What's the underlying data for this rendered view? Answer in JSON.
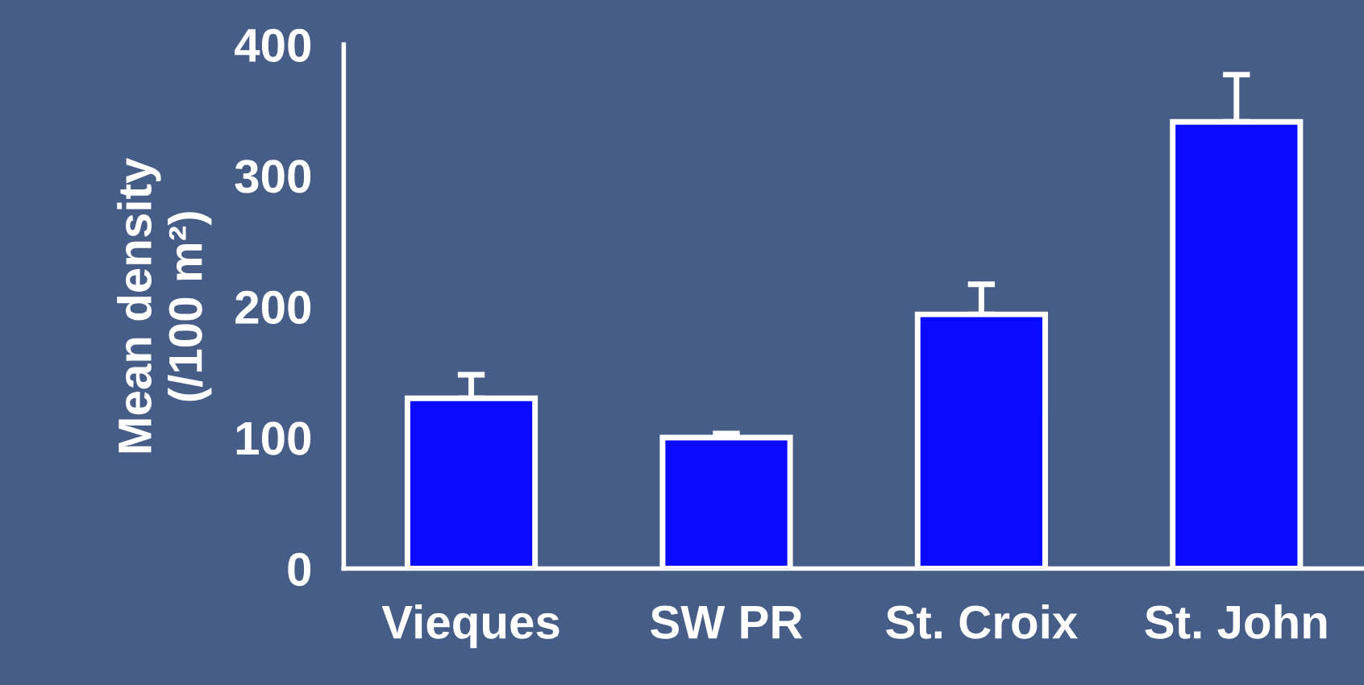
{
  "chart_data": {
    "type": "bar",
    "ylabel": "Mean density\n(/100 m²)",
    "categories": [
      "Vieques",
      "SW PR",
      "St. Croix",
      "St. John"
    ],
    "values": [
      130,
      100,
      194,
      341
    ],
    "errors": [
      [
        130,
        148
      ],
      [
        100,
        103
      ],
      [
        194,
        217
      ],
      [
        341,
        377
      ]
    ],
    "color": "#0a0aff",
    "ylim": [
      0,
      400
    ],
    "yticks": [
      0,
      100,
      200,
      300,
      400
    ],
    "grid": false,
    "legend": false
  }
}
